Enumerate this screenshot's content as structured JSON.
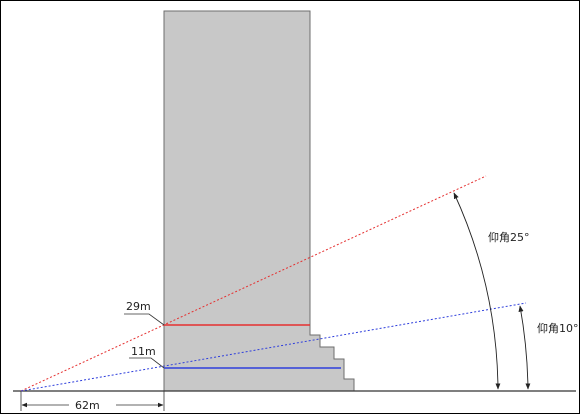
{
  "labels": {
    "height_upper": "29m",
    "height_lower": "11m",
    "distance": "62m",
    "angle_upper": "仰角25°",
    "angle_lower": "仰角10°"
  },
  "colors": {
    "building": "#c8c8c8",
    "building_edge": "#6e6e6e",
    "red_line": "#e53030",
    "blue_line": "#2f3fdc",
    "ground": "#333333"
  }
}
